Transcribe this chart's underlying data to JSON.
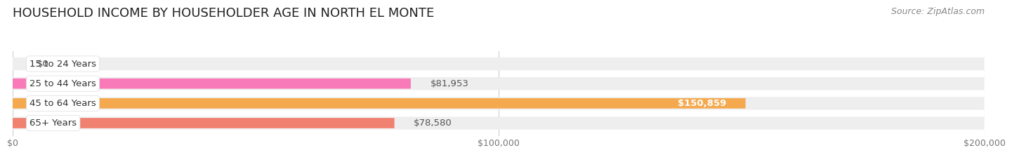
{
  "title": "HOUSEHOLD INCOME BY HOUSEHOLDER AGE IN NORTH EL MONTE",
  "source": "Source: ZipAtlas.com",
  "categories": [
    "15 to 24 Years",
    "25 to 44 Years",
    "45 to 64 Years",
    "65+ Years"
  ],
  "values": [
    0,
    81953,
    150859,
    78580
  ],
  "bar_colors": [
    "#a8a8d8",
    "#f97ab8",
    "#f5a94e",
    "#f08070"
  ],
  "bar_bg_color": "#eeeeee",
  "background_color": "#ffffff",
  "xlim": [
    0,
    200000
  ],
  "xticks": [
    0,
    100000,
    200000
  ],
  "xtick_labels": [
    "$0",
    "$100,000",
    "$200,000"
  ],
  "value_labels": [
    "$0",
    "$81,953",
    "$150,859",
    "$78,580"
  ],
  "value_inside": [
    false,
    false,
    true,
    false
  ],
  "title_fontsize": 13,
  "label_fontsize": 9.5,
  "tick_fontsize": 9,
  "source_fontsize": 9
}
